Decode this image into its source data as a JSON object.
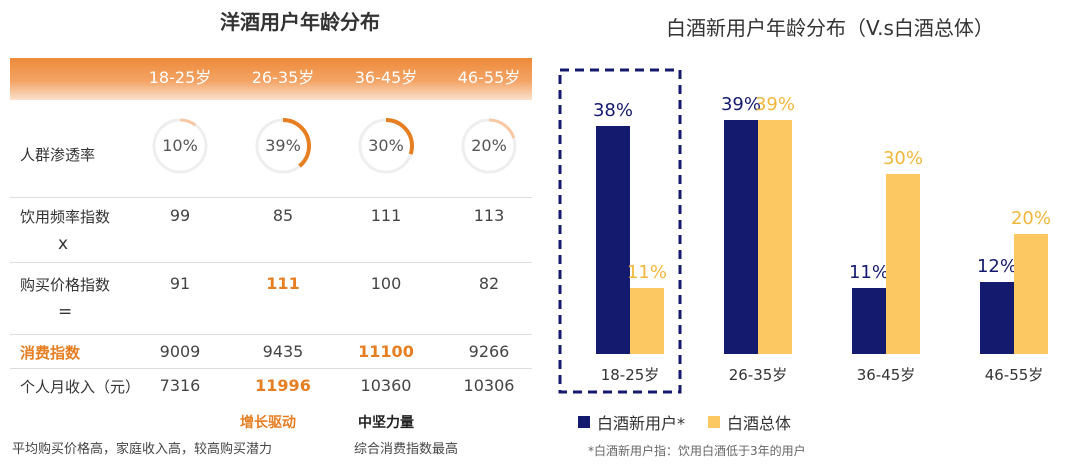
{
  "left_panel": {
    "title": "洋酒用户年龄分布",
    "age_groups": [
      "18-25岁",
      "26-35岁",
      "36-45岁",
      "46-55岁"
    ],
    "rows": {
      "penetration": {
        "label": "人群渗透率",
        "values": [
          "10%",
          "39%",
          "30%",
          "20%"
        ],
        "fractions": [
          0.1,
          0.39,
          0.3,
          0.2
        ]
      },
      "frequency": {
        "label": "饮用频率指数",
        "values": [
          "99",
          "85",
          "111",
          "113"
        ]
      },
      "times": {
        "symbol": "x"
      },
      "price": {
        "label": "购买价格指数",
        "values": [
          "91",
          "111",
          "100",
          "82"
        ]
      },
      "equals": {
        "symbol": "="
      },
      "consumption": {
        "label": "消费指数",
        "values": [
          "9009",
          "9435",
          "11100",
          "9266"
        ]
      },
      "income": {
        "label": "个人月收入（元）",
        "values": [
          "7316",
          "11996",
          "10360",
          "10306"
        ]
      }
    },
    "notes": {
      "growth_title": "增长驱动",
      "growth_desc": "平均购买价格高，家庭收入高，较高购买潜力",
      "core_title": "中坚力量",
      "core_desc": "综合消费指数最高"
    },
    "colors": {
      "orange": "#e67e22",
      "ring_track": "#eeeeee",
      "ring_light": "#f6c9a4"
    }
  },
  "chart_data": {
    "type": "bar",
    "title": "白酒新用户年龄分布（V.s白酒总体）",
    "categories": [
      "18-25岁",
      "26-35岁",
      "36-45岁",
      "46-55岁"
    ],
    "series": [
      {
        "name": "白酒新用户*",
        "values": [
          38,
          39,
          11,
          12
        ],
        "labels": [
          "38%",
          "39%",
          "11%",
          "12%"
        ],
        "color": "#141a6e"
      },
      {
        "name": "白酒总体",
        "values": [
          11,
          39,
          30,
          20
        ],
        "labels": [
          "11%",
          "39%",
          "30%",
          "20%"
        ],
        "color": "#fcc862"
      }
    ],
    "ylim": [
      0,
      45
    ],
    "highlight_category": "18-25岁",
    "highlight_color": "#141a6e",
    "legend_position": "bottom",
    "footnote": "*白酒新用户指：饮用白酒低于3年的用户"
  }
}
